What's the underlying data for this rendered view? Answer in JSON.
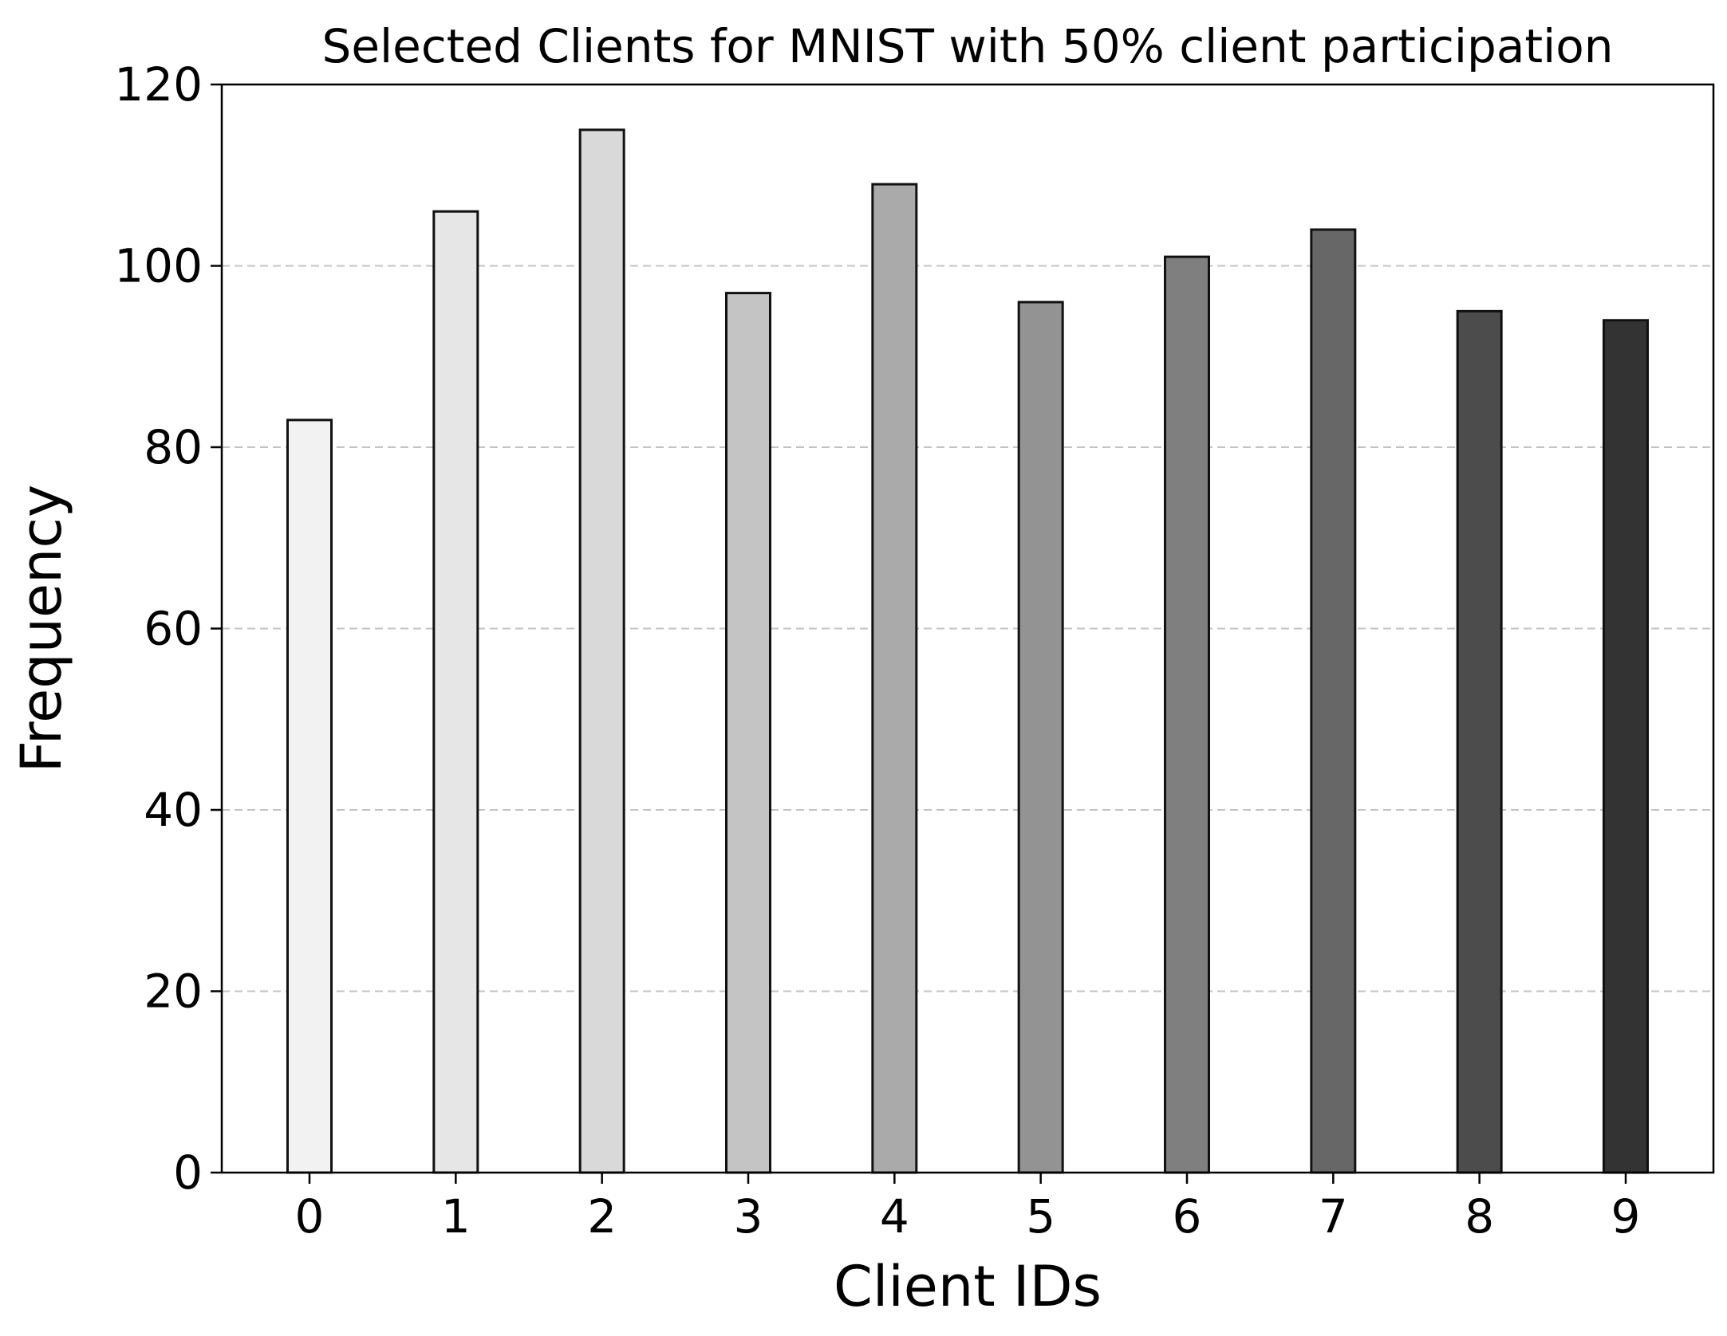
{
  "chart_data": {
    "type": "bar",
    "title": "Selected Clients for MNIST with 50% client participation",
    "xlabel": "Client IDs",
    "ylabel": "Frequency",
    "categories": [
      "0",
      "1",
      "2",
      "3",
      "4",
      "5",
      "6",
      "7",
      "8",
      "9"
    ],
    "values": [
      83,
      106,
      115,
      97,
      109,
      96,
      101,
      104,
      95,
      94
    ],
    "bar_colors": [
      "#f2f2f2",
      "#e6e6e6",
      "#d9d9d9",
      "#c4c4c4",
      "#aaaaaa",
      "#939393",
      "#7f7f7f",
      "#676767",
      "#4c4c4c",
      "#333333"
    ],
    "edge_color": "#111111",
    "ylim": [
      0,
      120
    ],
    "yticks": [
      "0",
      "20",
      "40",
      "60",
      "80",
      "100",
      "120"
    ],
    "grid": "y-dashed",
    "legend": "none"
  }
}
